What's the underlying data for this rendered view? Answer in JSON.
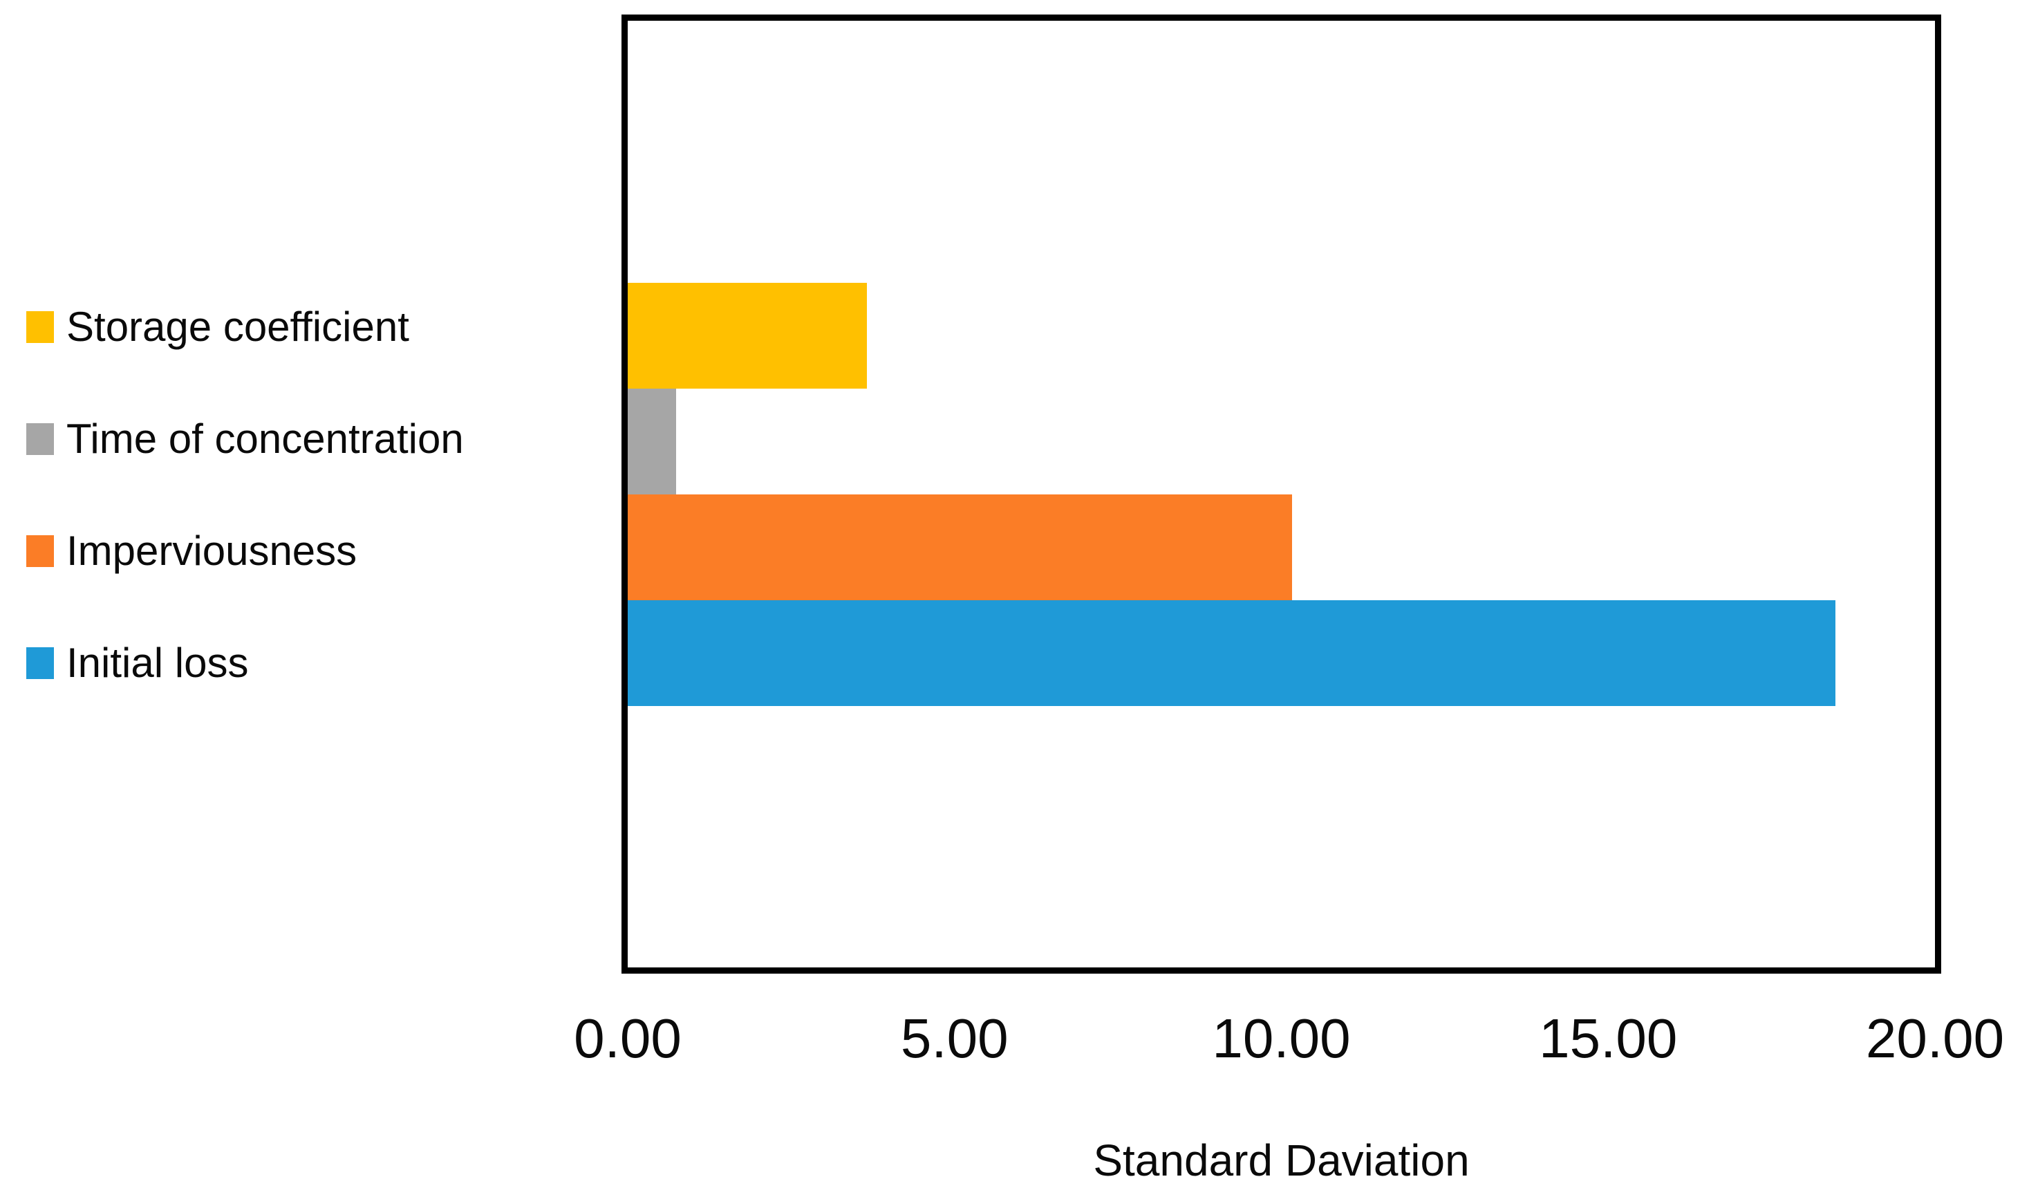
{
  "chart_data": {
    "type": "bar",
    "orientation": "horizontal",
    "title": "",
    "xlabel": "Standard Daviation",
    "ylabel": "",
    "xlim": [
      0,
      20
    ],
    "x_ticks": [
      "0.00",
      "5.00",
      "10.00",
      "15.00",
      "20.00"
    ],
    "grid": false,
    "legend_position": "left",
    "categories": [
      ""
    ],
    "series": [
      {
        "name": "Storage coefficient",
        "values": [
          3.66
        ],
        "color": "#FFC000"
      },
      {
        "name": "Time of concentration",
        "values": [
          0.74
        ],
        "color": "#A6A6A6"
      },
      {
        "name": "Imperviousness",
        "values": [
          10.16
        ],
        "color": "#FB7D26"
      },
      {
        "name": "Initial loss",
        "values": [
          18.48
        ],
        "color": "#1F9AD7"
      }
    ],
    "plot_border_color": "#000000",
    "background_color": "#FFFFFF"
  }
}
